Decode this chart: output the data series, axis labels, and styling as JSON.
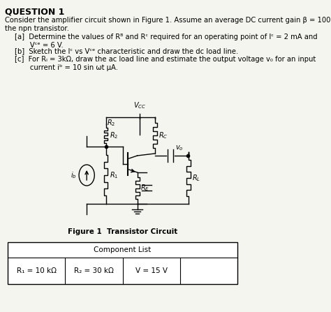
{
  "title": "QUESTION 1",
  "question_text": "Consider the amplifier circuit shown in Figure 1. Assume an average DC current gain β = 100 for\nthe npn transistor.",
  "parts": [
    "[a]  Determine the values of R₁ and R⁣ required for an operating point of I⁣ = 2 mA and\n       V⁣⁡ = 6 V.",
    "[b]  Sketch the I⁣ vs V⁣⁡ characteristic and draw the dc load line.",
    "[c]  For Rₗ = 3kΩ, draw the ac load line and estimate the output voltage v₀ for an input\n       current iₙ = 10 sin ωt μA."
  ],
  "figure_caption": "Figure 1  Transistor Circuit",
  "table_header": "Component List",
  "table_data": [
    [
      "R₁ = 10 kΩ",
      "R₂ = 30 kΩ",
      "V⁣⁣ = 15 V",
      ""
    ]
  ],
  "bg_color": "#f5f5f0"
}
